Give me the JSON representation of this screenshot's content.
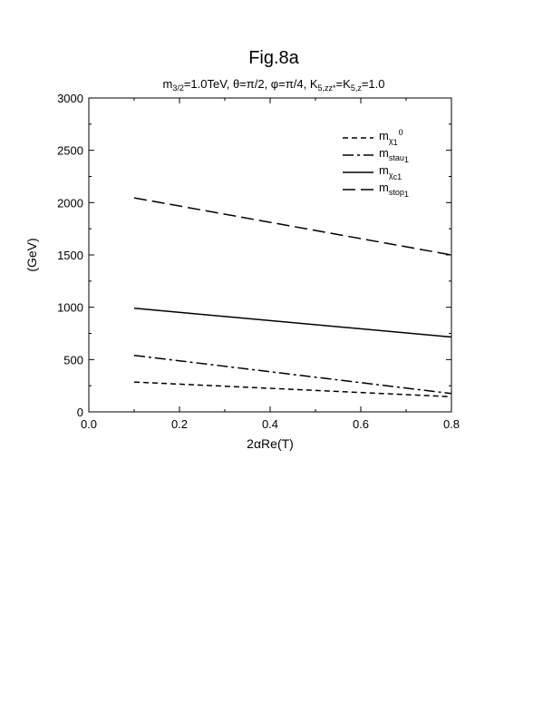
{
  "figure": {
    "title": "Fig.8a",
    "subtitle_parts": [
      {
        "t": "m",
        "sub": false
      },
      {
        "t": "3/2",
        "sub": true
      },
      {
        "t": "=1.0TeV, θ=π/2, φ=π/4, K",
        "sub": false
      },
      {
        "t": "5,zz*",
        "sub": true
      },
      {
        "t": "=K",
        "sub": false
      },
      {
        "t": "5,z",
        "sub": true
      },
      {
        "t": "=1.0",
        "sub": false
      }
    ]
  },
  "chart_data": {
    "type": "line",
    "title": "Fig.8a",
    "xlabel": "2αRe(T)",
    "ylabel": "(GeV)",
    "xlim": [
      0.0,
      0.8
    ],
    "ylim": [
      0,
      3000
    ],
    "xticks": [
      0.0,
      0.2,
      0.4,
      0.6,
      0.8
    ],
    "xtick_labels": [
      "0.0",
      "0.2",
      "0.4",
      "0.6",
      "0.8"
    ],
    "yticks": [
      0,
      500,
      1000,
      1500,
      2000,
      2500,
      3000
    ],
    "ytick_labels": [
      "0",
      "500",
      "1000",
      "1500",
      "2000",
      "2500",
      "3000"
    ],
    "grid": false,
    "legend_position": "top-right",
    "series": [
      {
        "label_main": "m",
        "label_sub": "χ",
        "label_subsub": "1",
        "label_sup": "0",
        "dash": "short-dash",
        "x": [
          0.1,
          0.8
        ],
        "y": [
          285,
          145
        ]
      },
      {
        "label_main": "m",
        "label_sub": "stau",
        "label_subsub": "1",
        "label_sup": "",
        "dash": "dash-dot",
        "x": [
          0.1,
          0.8
        ],
        "y": [
          540,
          175
        ]
      },
      {
        "label_main": "m",
        "label_sub": "χ",
        "label_subsub": "c1",
        "label_sup": "",
        "dash": "solid",
        "x": [
          0.1,
          0.8
        ],
        "y": [
          990,
          715
        ]
      },
      {
        "label_main": "m",
        "label_sub": "stop",
        "label_subsub": "1",
        "label_sup": "",
        "dash": "long-dash",
        "x": [
          0.1,
          0.8
        ],
        "y": [
          2045,
          1500
        ]
      }
    ]
  }
}
